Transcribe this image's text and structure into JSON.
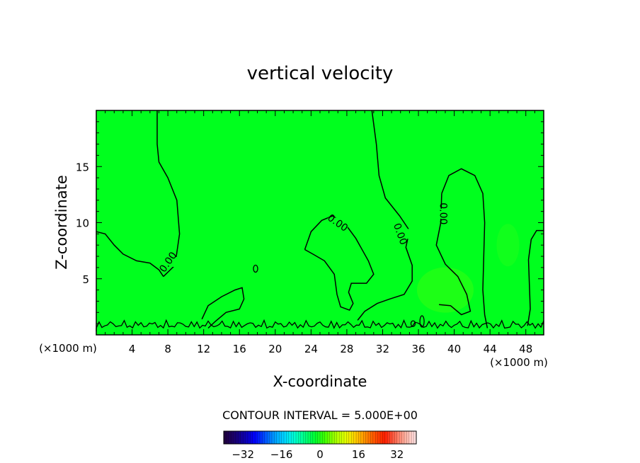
{
  "chart_data": {
    "type": "heatmap",
    "title": "vertical velocity",
    "xlabel": "X-coordinate",
    "ylabel": "Z-coordinate",
    "x_units_left": "(×1000 m)",
    "x_units_right": "(×1000 m)",
    "xlim": [
      0,
      50
    ],
    "ylim": [
      0,
      20
    ],
    "x_ticks": [
      4,
      8,
      12,
      16,
      20,
      24,
      28,
      32,
      36,
      40,
      44,
      48
    ],
    "x_tick_labels": [
      "4",
      "8",
      "12",
      "16",
      "20",
      "24",
      "28",
      "32",
      "36",
      "40",
      "44",
      "48"
    ],
    "y_ticks": [
      5,
      10,
      15
    ],
    "y_tick_labels": [
      "5",
      "10",
      "15"
    ],
    "field_background_color": "#00ff1e",
    "contour_color": "#000000",
    "contour_labels": [
      {
        "text": "0.00",
        "x": 8.0,
        "z": 6.5
      },
      {
        "text": "0.00",
        "x": 27.0,
        "z": 10.0
      },
      {
        "text": "0.00",
        "x": 34.0,
        "z": 9.0
      },
      {
        "text": "0.00",
        "x": 38.8,
        "z": 10.8
      }
    ],
    "contour_interval_label": "CONTOUR INTERVAL = 5.000E+00",
    "colorbar": {
      "range": [
        -40,
        40
      ],
      "ticks": [
        -32,
        -16,
        0,
        16,
        32
      ],
      "tick_labels": [
        "−32",
        "−16",
        "0",
        "16",
        "32"
      ],
      "colors": [
        "#200040",
        "#1a0070",
        "#0d00b0",
        "#0000ff",
        "#0050ff",
        "#00a0ff",
        "#00d8ff",
        "#00ffd0",
        "#00ff80",
        "#00ff30",
        "#40ff00",
        "#a0ff00",
        "#e0ff00",
        "#ffd000",
        "#ff9000",
        "#ff5000",
        "#ff1e00",
        "#ff6a50",
        "#ffb0a0",
        "#ffe0e0"
      ]
    }
  }
}
